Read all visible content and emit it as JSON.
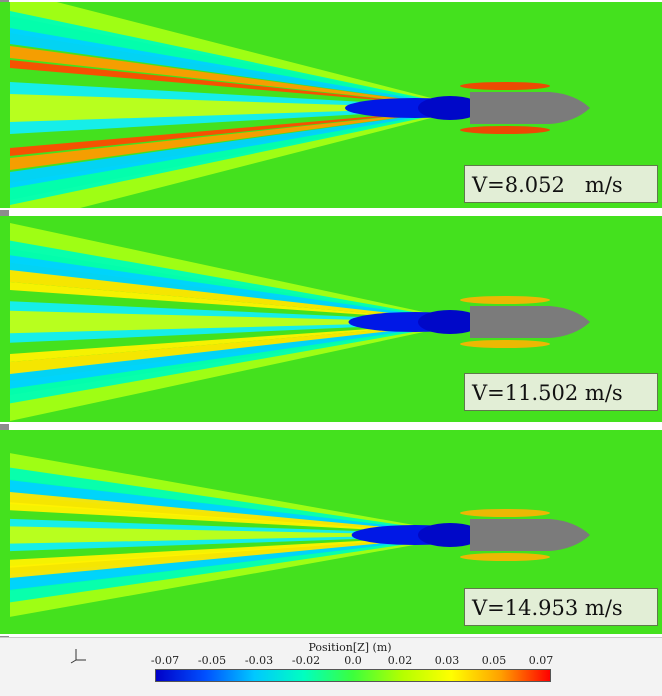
{
  "panels": [
    {
      "label": "V=8.052   m/s",
      "wake_strength": 1.0
    },
    {
      "label": "V=11.502 m/s",
      "wake_strength": 0.8
    },
    {
      "label": "V=14.953 m/s",
      "wake_strength": 0.62
    }
  ],
  "legend": {
    "title": "Position[Z] (m)",
    "ticks": [
      "-0.07",
      "-0.05",
      "-0.03",
      "-0.02",
      "0.0",
      "0.02",
      "0.03",
      "0.05",
      "0.07"
    ],
    "colors": [
      "#0000c8",
      "#0050ff",
      "#00c8ff",
      "#00ffc0",
      "#3cff3c",
      "#b4ff00",
      "#ffff00",
      "#ffa000",
      "#ff0000"
    ]
  },
  "colors": {
    "background_field": "#44e11e",
    "hull": "#7b7b7b",
    "label_bg": "#e2eed6"
  }
}
